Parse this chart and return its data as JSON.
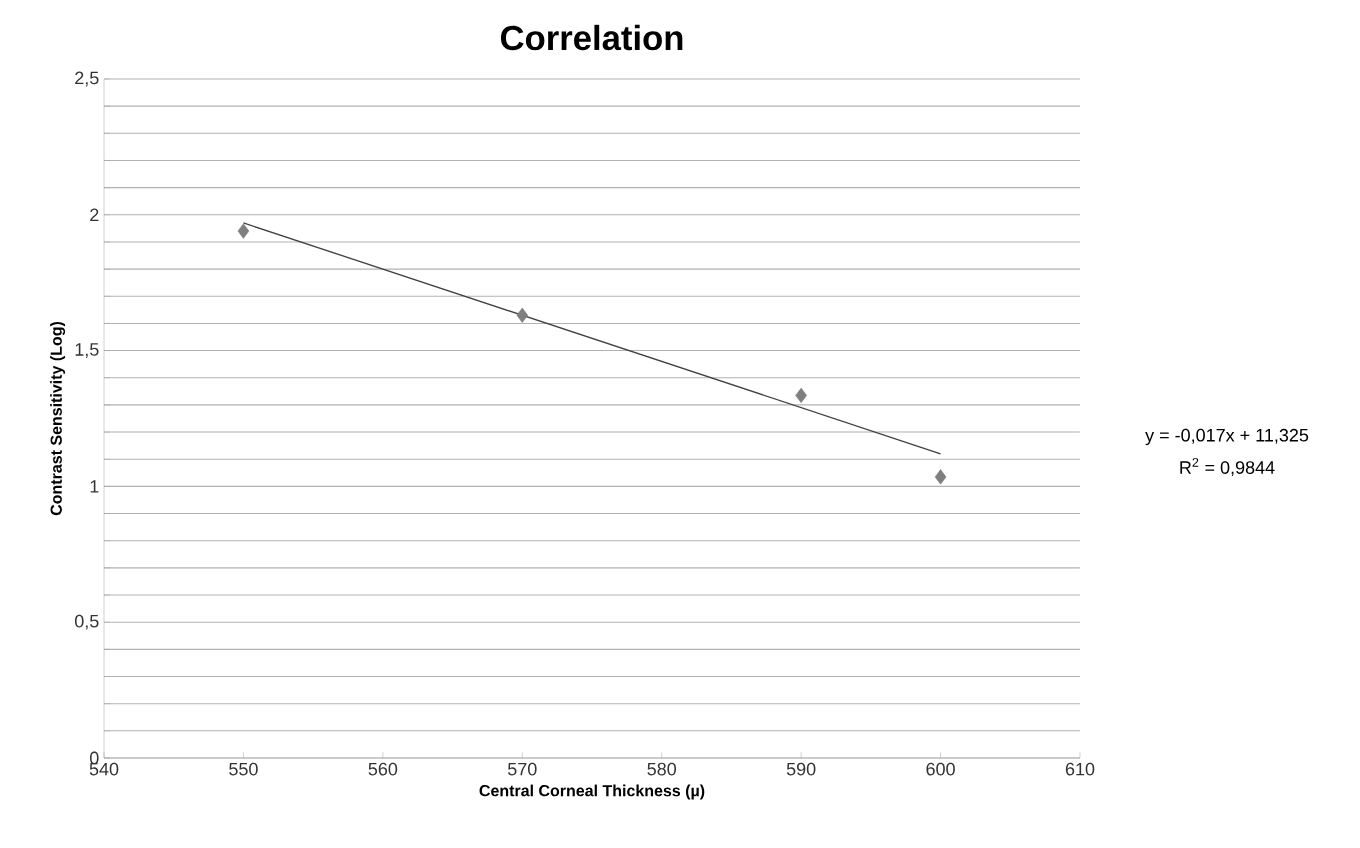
{
  "chart_data": {
    "type": "scatter",
    "title": "Correlation",
    "xlabel": "Central Corneal Thickness (µ)",
    "ylabel": "Contrast Sensitivity (Log)",
    "xlim": [
      540,
      610
    ],
    "xticks": [
      540,
      550,
      560,
      570,
      580,
      590,
      600,
      610
    ],
    "ylim": [
      0,
      2.5
    ],
    "yticks": [
      {
        "value": 0,
        "label": "0"
      },
      {
        "value": 0.1,
        "label": null
      },
      {
        "value": 0.2,
        "label": null
      },
      {
        "value": 0.3,
        "label": null
      },
      {
        "value": 0.4,
        "label": null
      },
      {
        "value": 0.5,
        "label": "0,5"
      },
      {
        "value": 0.6,
        "label": null
      },
      {
        "value": 0.7,
        "label": null
      },
      {
        "value": 0.8,
        "label": null
      },
      {
        "value": 0.9,
        "label": null
      },
      {
        "value": 1,
        "label": "1"
      },
      {
        "value": 1.1,
        "label": null
      },
      {
        "value": 1.2,
        "label": null
      },
      {
        "value": 1.3,
        "label": null
      },
      {
        "value": 1.4,
        "label": null
      },
      {
        "value": 1.5,
        "label": "1,5"
      },
      {
        "value": 1.6,
        "label": null
      },
      {
        "value": 1.7,
        "label": null
      },
      {
        "value": 1.8,
        "label": null
      },
      {
        "value": 1.9,
        "label": null
      },
      {
        "value": 2,
        "label": "2"
      },
      {
        "value": 2.1,
        "label": null
      },
      {
        "value": 2.2,
        "label": null
      },
      {
        "value": 2.3,
        "label": null
      },
      {
        "value": 2.4,
        "label": null
      },
      {
        "value": 2.5,
        "label": "2,5"
      }
    ],
    "grid": "y",
    "series": [
      {
        "color": "#7f7f7f",
        "marker": "diamond",
        "x": [
          550,
          570,
          590,
          600
        ],
        "values": [
          1.94,
          1.63,
          1.335,
          1.035
        ]
      },
      {
        "type": "line",
        "color": "#404040",
        "marker": "none",
        "line_style": "solid",
        "x": [
          550,
          600
        ],
        "values": [
          1.97,
          1.12
        ]
      }
    ],
    "annotations": [
      "y = -0,017x + 11,325",
      "R$^{2}$ = 0,9844"
    ]
  }
}
